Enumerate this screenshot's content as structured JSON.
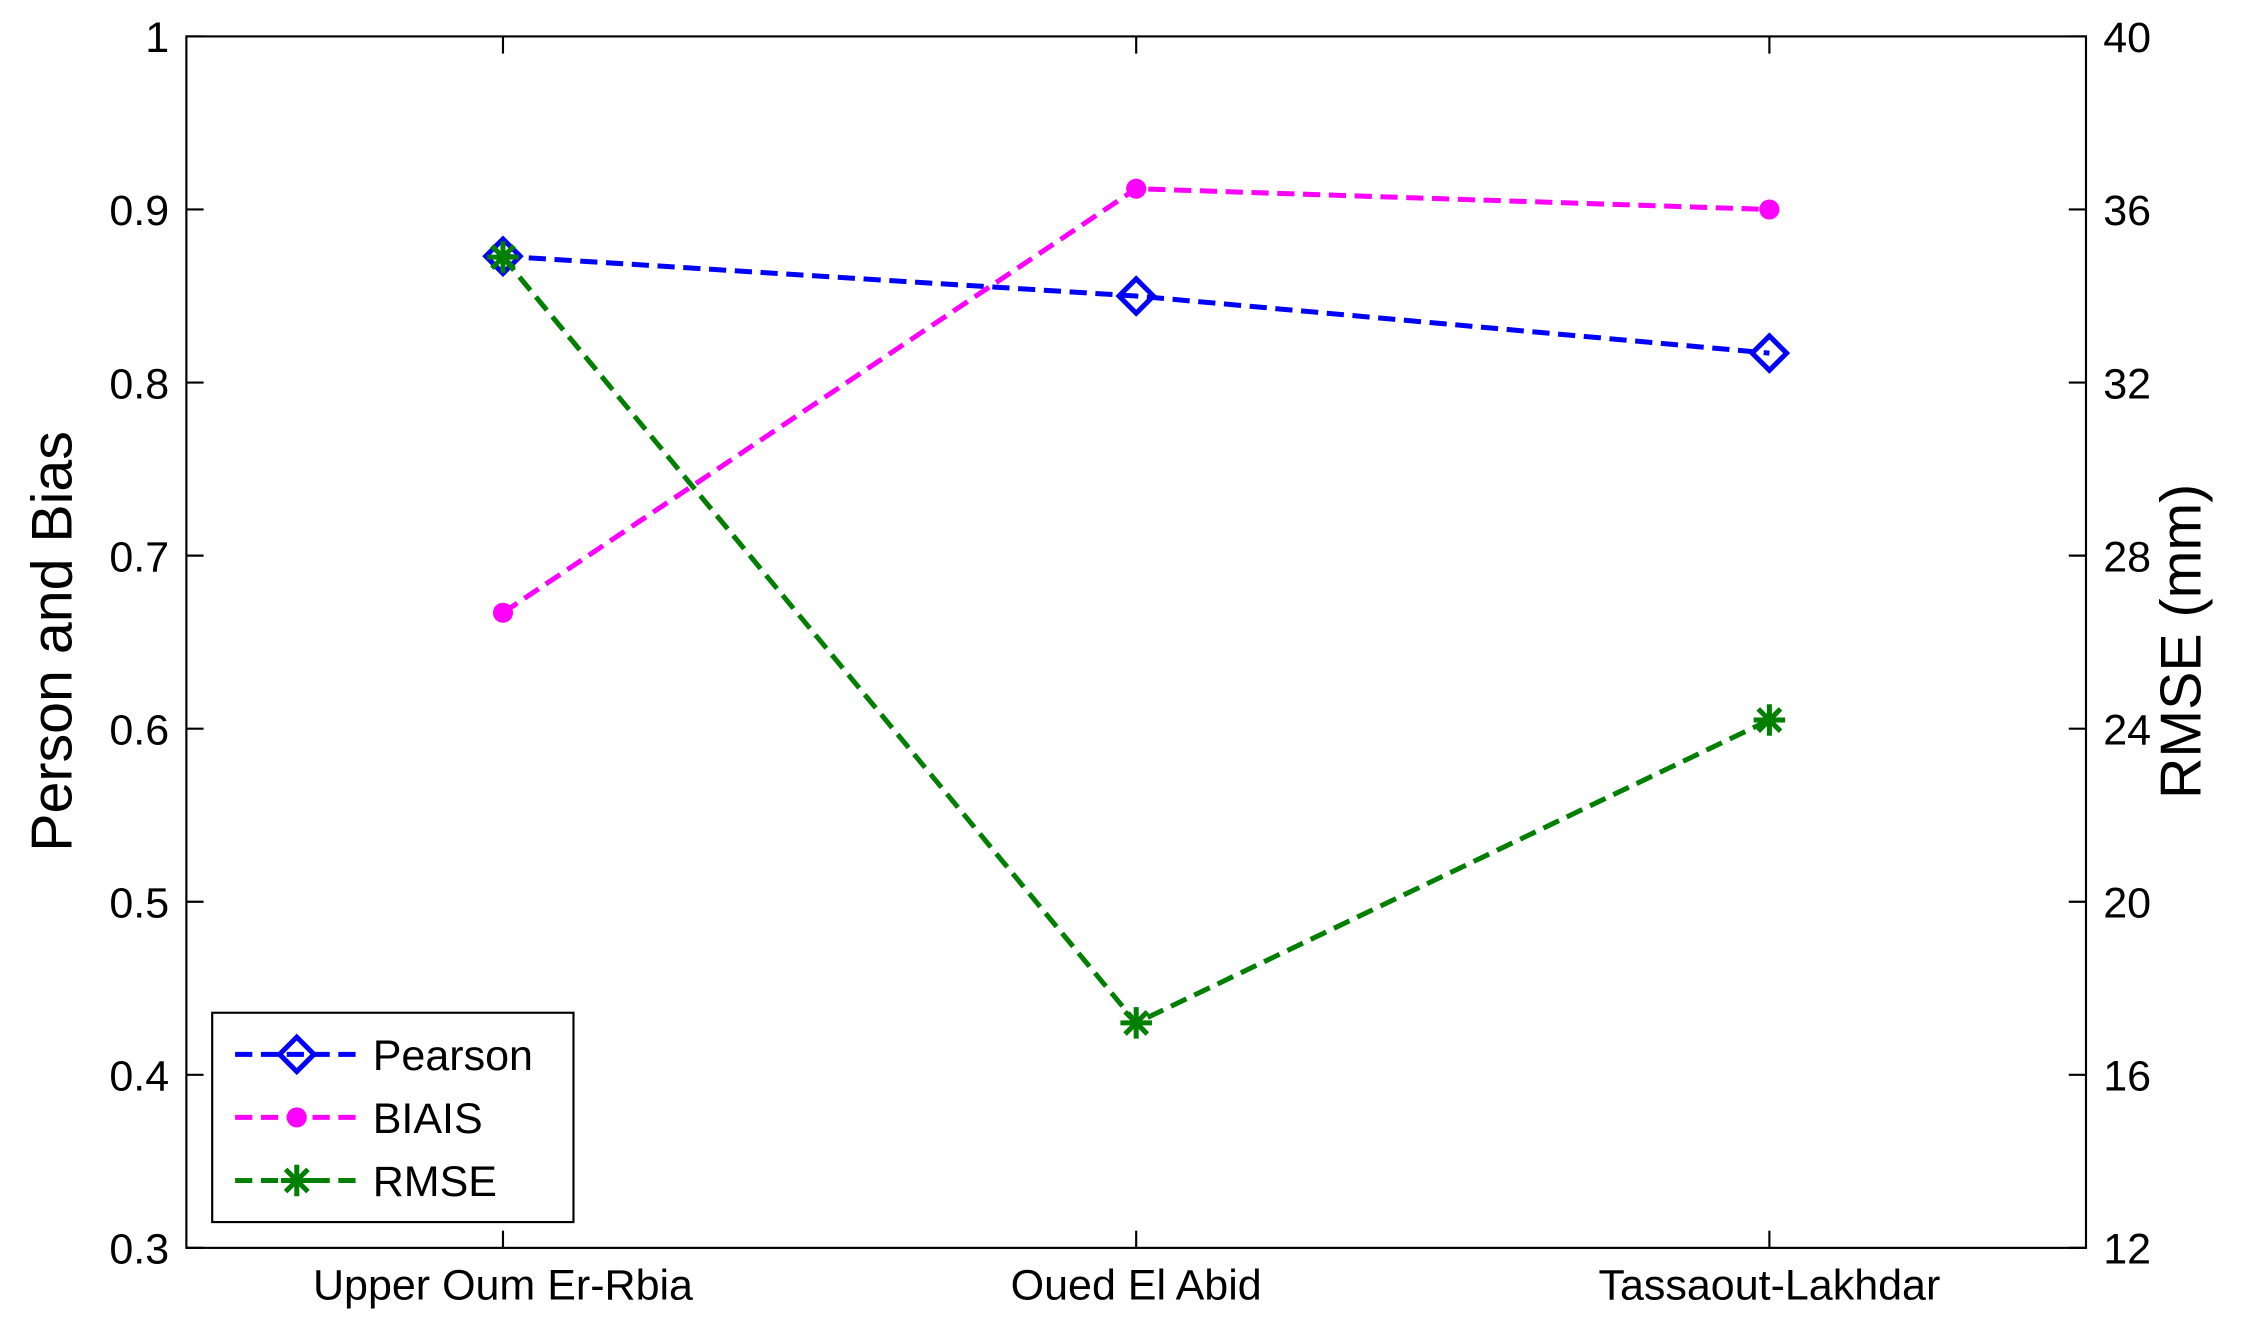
{
  "chart_data": {
    "type": "line",
    "categories": [
      "Upper Oum Er-Rbia",
      "Oued El Abid",
      "Tassaout-Lakhdar"
    ],
    "y_label": "Person and Bias",
    "y2_label": "RMSE (mm)",
    "ylim": [
      0.3,
      1
    ],
    "yticks": [
      0.3,
      0.4,
      0.5,
      0.6,
      0.7,
      0.8,
      0.9,
      1
    ],
    "y2lim": [
      12,
      40
    ],
    "y2ticks": [
      12,
      16,
      20,
      24,
      28,
      32,
      36,
      40
    ],
    "legend": "lower left",
    "series": [
      {
        "name": "Pearson",
        "color": "#0000ff",
        "marker": "diamond",
        "values": [
          0.873,
          0.85,
          0.817
        ]
      },
      {
        "name": "BIAIS",
        "color": "#ff00ff",
        "marker": "circle",
        "values": [
          0.667,
          0.912,
          0.9
        ]
      },
      {
        "name": "RMSE",
        "color": "#007f00",
        "marker": "asterisk",
        "axis": "y2",
        "values": [
          34.9,
          17.2,
          24.2
        ]
      }
    ]
  }
}
